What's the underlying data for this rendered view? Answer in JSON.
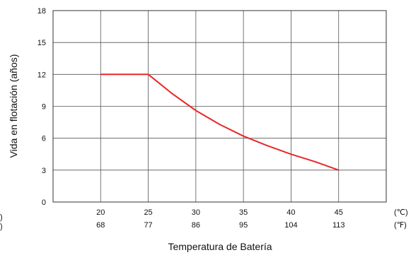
{
  "chart_data": {
    "type": "line",
    "title": "",
    "xlabel": "Temperatura de Batería",
    "ylabel": "Vida en flotación (años)",
    "x_units": [
      "(℃)",
      "(℉)"
    ],
    "x_ticks_c": [
      "20",
      "25",
      "30",
      "35",
      "40",
      "45"
    ],
    "x_ticks_f": [
      "68",
      "77",
      "86",
      "95",
      "104",
      "113"
    ],
    "y_ticks": [
      "0",
      "3",
      "6",
      "9",
      "12",
      "15",
      "18"
    ],
    "xlim": [
      15,
      50
    ],
    "ylim": [
      0,
      18
    ],
    "grid": true,
    "series": [
      {
        "color": "#e8262a",
        "x": [
          20,
          25,
          27.5,
          30,
          32.5,
          35,
          37.5,
          40,
          42.5,
          45
        ],
        "y": [
          12.0,
          12.0,
          10.2,
          8.6,
          7.3,
          6.2,
          5.3,
          4.5,
          3.8,
          3.0
        ]
      }
    ],
    "partial_left_labels": [
      ")",
      ")"
    ]
  }
}
